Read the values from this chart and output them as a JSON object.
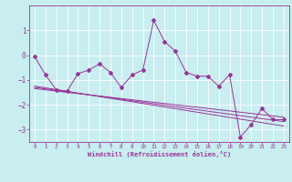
{
  "title": "",
  "xlabel": "Windchill (Refroidissement éolien,°C)",
  "ylabel": "",
  "background_color": "#c8eef0",
  "line_color": "#993399",
  "grid_color": "#ffffff",
  "x_data": [
    0,
    1,
    2,
    3,
    4,
    5,
    6,
    7,
    8,
    9,
    10,
    11,
    12,
    13,
    14,
    15,
    16,
    17,
    18,
    19,
    20,
    21,
    22,
    23
  ],
  "y_main": [
    -0.05,
    -0.8,
    -1.4,
    -1.45,
    -0.75,
    -0.6,
    -0.35,
    -0.7,
    -1.3,
    -0.8,
    -0.6,
    1.4,
    0.55,
    0.15,
    -0.7,
    -0.85,
    -0.85,
    -1.25,
    -0.8,
    -3.3,
    -2.8,
    -2.15,
    -2.6,
    -2.6
  ],
  "y_reg1": [
    -1.35,
    -1.4,
    -1.45,
    -1.5,
    -1.55,
    -1.6,
    -1.65,
    -1.7,
    -1.75,
    -1.8,
    -1.85,
    -1.9,
    -1.95,
    -2.0,
    -2.05,
    -2.1,
    -2.15,
    -2.2,
    -2.25,
    -2.3,
    -2.35,
    -2.4,
    -2.45,
    -2.5
  ],
  "y_reg2": [
    -1.3,
    -1.36,
    -1.42,
    -1.48,
    -1.54,
    -1.6,
    -1.66,
    -1.72,
    -1.78,
    -1.84,
    -1.9,
    -1.96,
    -2.02,
    -2.08,
    -2.14,
    -2.2,
    -2.26,
    -2.32,
    -2.38,
    -2.44,
    -2.5,
    -2.56,
    -2.62,
    -2.68
  ],
  "y_reg3": [
    -1.25,
    -1.32,
    -1.39,
    -1.46,
    -1.53,
    -1.6,
    -1.67,
    -1.74,
    -1.81,
    -1.88,
    -1.95,
    -2.02,
    -2.09,
    -2.16,
    -2.23,
    -2.3,
    -2.37,
    -2.44,
    -2.51,
    -2.58,
    -2.65,
    -2.72,
    -2.79,
    -2.86
  ],
  "ylim": [
    -3.5,
    2.0
  ],
  "xlim": [
    -0.5,
    23.5
  ],
  "yticks": [
    -3,
    -2,
    -1,
    0,
    1
  ],
  "xticks": [
    0,
    1,
    2,
    3,
    4,
    5,
    6,
    7,
    8,
    9,
    10,
    11,
    12,
    13,
    14,
    15,
    16,
    17,
    18,
    19,
    20,
    21,
    22,
    23
  ],
  "fig_width": 3.2,
  "fig_height": 2.0,
  "dpi": 100
}
